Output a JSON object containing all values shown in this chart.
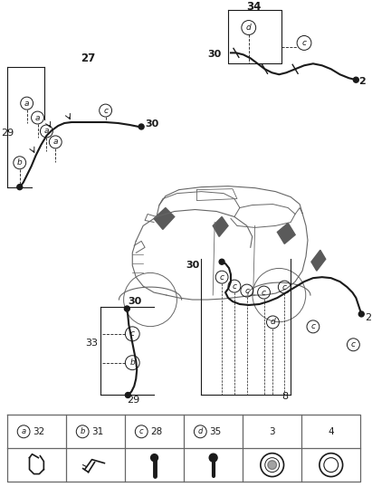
{
  "bg_color": "#ffffff",
  "line_color": "#1a1a1a",
  "dark_gray": "#555555",
  "mid_gray": "#888888",
  "light_line": "#aaaaaa",
  "legend_items": [
    {
      "symbol": "a",
      "number": "32",
      "has_circle": true
    },
    {
      "symbol": "b",
      "number": "31",
      "has_circle": true
    },
    {
      "symbol": "c",
      "number": "28",
      "has_circle": true
    },
    {
      "symbol": "d",
      "number": "35",
      "has_circle": true
    },
    {
      "symbol": "",
      "number": "3",
      "has_circle": false
    },
    {
      "symbol": "",
      "number": "4",
      "has_circle": false
    }
  ]
}
